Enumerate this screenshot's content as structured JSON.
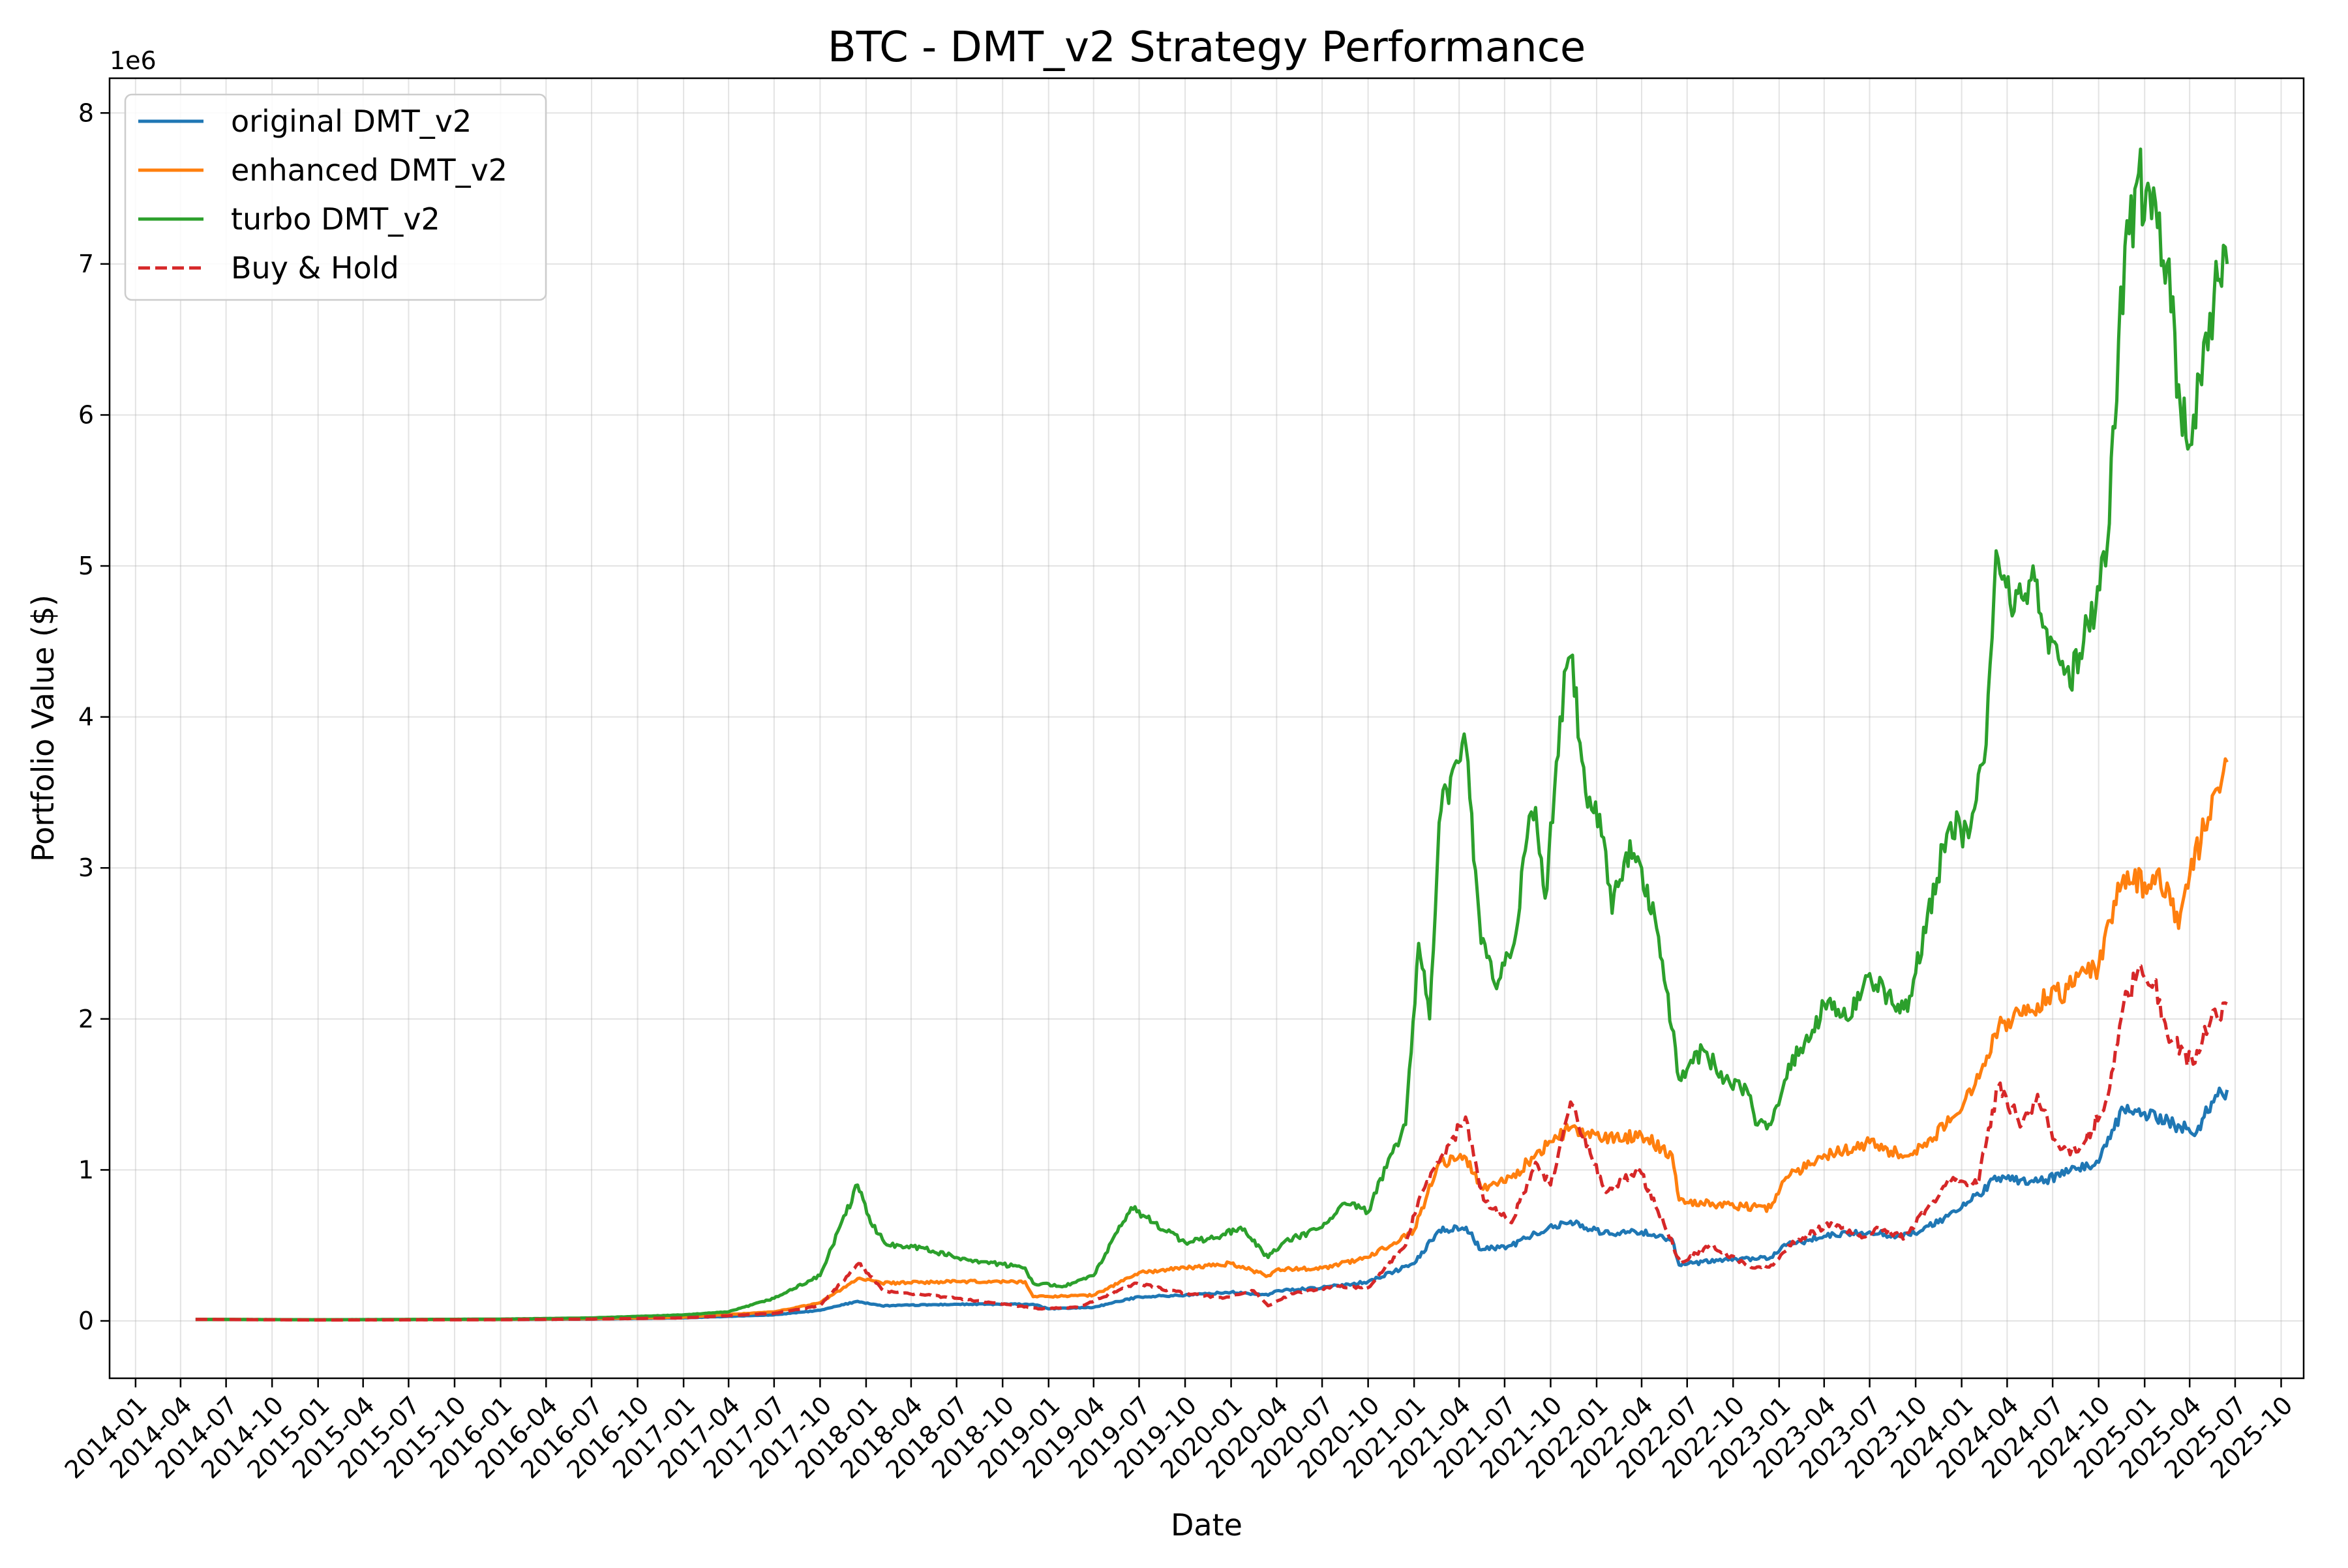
{
  "chart_data": {
    "type": "line",
    "title": "BTC - DMT_v2 Strategy Performance",
    "xlabel": "Date",
    "ylabel": "Portfolio Value ($)",
    "y_offset_label": "1e6",
    "y_scale_factor": 1000000,
    "xlim": [
      "2013-11-10",
      "2025-11-15"
    ],
    "ylim": [
      -380000,
      8230000
    ],
    "x_ticks": [
      "2014-01",
      "2014-04",
      "2014-07",
      "2014-10",
      "2015-01",
      "2015-04",
      "2015-07",
      "2015-10",
      "2016-01",
      "2016-04",
      "2016-07",
      "2016-10",
      "2017-01",
      "2017-04",
      "2017-07",
      "2017-10",
      "2018-01",
      "2018-04",
      "2018-07",
      "2018-10",
      "2019-01",
      "2019-04",
      "2019-07",
      "2019-10",
      "2020-01",
      "2020-04",
      "2020-07",
      "2020-10",
      "2021-01",
      "2021-04",
      "2021-07",
      "2021-10",
      "2022-01",
      "2022-04",
      "2022-07",
      "2022-10",
      "2023-01",
      "2023-04",
      "2023-07",
      "2023-10",
      "2024-01",
      "2024-04",
      "2024-07",
      "2024-10",
      "2025-01",
      "2025-04",
      "2025-07",
      "2025-10"
    ],
    "y_ticks": [
      0,
      1000000,
      2000000,
      3000000,
      4000000,
      5000000,
      6000000,
      7000000,
      8000000
    ],
    "y_tick_labels": [
      "0",
      "1",
      "2",
      "3",
      "4",
      "5",
      "6",
      "7",
      "8"
    ],
    "grid": true,
    "legend_position": "upper-left",
    "series": [
      {
        "name": "original DMT_v2",
        "color": "#1f77b4",
        "dash": "solid",
        "points": [
          [
            "2014-05-01",
            10000
          ],
          [
            "2015-01-01",
            8000
          ],
          [
            "2016-01-01",
            9000
          ],
          [
            "2016-07-01",
            12000
          ],
          [
            "2017-01-01",
            20000
          ],
          [
            "2017-07-01",
            40000
          ],
          [
            "2017-10-01",
            70000
          ],
          [
            "2017-12-15",
            130000
          ],
          [
            "2018-02-01",
            100000
          ],
          [
            "2018-07-01",
            110000
          ],
          [
            "2018-12-01",
            110000
          ],
          [
            "2019-01-01",
            80000
          ],
          [
            "2019-04-01",
            90000
          ],
          [
            "2019-07-01",
            160000
          ],
          [
            "2019-10-01",
            170000
          ],
          [
            "2020-01-01",
            190000
          ],
          [
            "2020-03-15",
            170000
          ],
          [
            "2020-04-01",
            200000
          ],
          [
            "2020-07-01",
            220000
          ],
          [
            "2020-10-01",
            260000
          ],
          [
            "2021-01-01",
            380000
          ],
          [
            "2021-02-20",
            600000
          ],
          [
            "2021-04-15",
            620000
          ],
          [
            "2021-05-15",
            470000
          ],
          [
            "2021-07-15",
            500000
          ],
          [
            "2021-09-01",
            580000
          ],
          [
            "2021-11-10",
            660000
          ],
          [
            "2022-01-15",
            580000
          ],
          [
            "2022-04-01",
            590000
          ],
          [
            "2022-06-01",
            540000
          ],
          [
            "2022-06-15",
            370000
          ],
          [
            "2022-09-01",
            400000
          ],
          [
            "2022-12-15",
            420000
          ],
          [
            "2023-01-15",
            500000
          ],
          [
            "2023-04-01",
            560000
          ],
          [
            "2023-07-01",
            590000
          ],
          [
            "2023-09-01",
            560000
          ],
          [
            "2023-10-15",
            600000
          ],
          [
            "2024-01-01",
            750000
          ],
          [
            "2024-03-15",
            950000
          ],
          [
            "2024-06-01",
            920000
          ],
          [
            "2024-08-01",
            980000
          ],
          [
            "2024-10-01",
            1050000
          ],
          [
            "2024-11-20",
            1400000
          ],
          [
            "2025-01-01",
            1380000
          ],
          [
            "2025-03-01",
            1300000
          ],
          [
            "2025-04-15",
            1250000
          ],
          [
            "2025-05-15",
            1450000
          ],
          [
            "2025-06-15",
            1530000
          ]
        ]
      },
      {
        "name": "enhanced DMT_v2",
        "color": "#ff7f0e",
        "dash": "solid",
        "points": [
          [
            "2014-05-01",
            10000
          ],
          [
            "2015-01-01",
            8000
          ],
          [
            "2016-01-01",
            10000
          ],
          [
            "2016-07-01",
            15000
          ],
          [
            "2017-01-01",
            25000
          ],
          [
            "2017-07-01",
            60000
          ],
          [
            "2017-10-01",
            120000
          ],
          [
            "2017-12-15",
            280000
          ],
          [
            "2018-02-01",
            250000
          ],
          [
            "2018-07-01",
            260000
          ],
          [
            "2018-11-15",
            260000
          ],
          [
            "2018-12-01",
            160000
          ],
          [
            "2019-04-01",
            170000
          ],
          [
            "2019-07-01",
            320000
          ],
          [
            "2019-10-01",
            350000
          ],
          [
            "2020-01-01",
            380000
          ],
          [
            "2020-03-15",
            300000
          ],
          [
            "2020-04-01",
            340000
          ],
          [
            "2020-07-01",
            350000
          ],
          [
            "2020-10-01",
            420000
          ],
          [
            "2021-01-01",
            600000
          ],
          [
            "2021-02-20",
            1050000
          ],
          [
            "2021-04-15",
            1080000
          ],
          [
            "2021-05-15",
            880000
          ],
          [
            "2021-07-15",
            950000
          ],
          [
            "2021-09-01",
            1100000
          ],
          [
            "2021-11-10",
            1280000
          ],
          [
            "2022-01-15",
            1200000
          ],
          [
            "2022-04-01",
            1230000
          ],
          [
            "2022-06-01",
            1100000
          ],
          [
            "2022-06-15",
            800000
          ],
          [
            "2022-09-01",
            770000
          ],
          [
            "2022-12-15",
            750000
          ],
          [
            "2023-01-15",
            950000
          ],
          [
            "2023-04-01",
            1100000
          ],
          [
            "2023-07-01",
            1180000
          ],
          [
            "2023-09-01",
            1100000
          ],
          [
            "2023-10-15",
            1150000
          ],
          [
            "2024-01-01",
            1400000
          ],
          [
            "2024-03-15",
            1950000
          ],
          [
            "2024-06-01",
            2100000
          ],
          [
            "2024-08-01",
            2200000
          ],
          [
            "2024-10-01",
            2350000
          ],
          [
            "2024-11-20",
            2950000
          ],
          [
            "2025-01-01",
            2900000
          ],
          [
            "2025-02-15",
            2900000
          ],
          [
            "2025-03-10",
            2600000
          ],
          [
            "2025-04-01",
            2950000
          ],
          [
            "2025-05-01",
            3250000
          ],
          [
            "2025-05-20",
            3500000
          ],
          [
            "2025-06-15",
            3700000
          ]
        ]
      },
      {
        "name": "turbo DMT_v2",
        "color": "#2ca02c",
        "dash": "solid",
        "points": [
          [
            "2014-05-01",
            10000
          ],
          [
            "2015-01-01",
            8000
          ],
          [
            "2016-01-01",
            12000
          ],
          [
            "2016-07-01",
            20000
          ],
          [
            "2017-01-01",
            40000
          ],
          [
            "2017-04-01",
            60000
          ],
          [
            "2017-07-01",
            150000
          ],
          [
            "2017-10-01",
            300000
          ],
          [
            "2017-12-15",
            900000
          ],
          [
            "2018-01-10",
            650000
          ],
          [
            "2018-02-15",
            500000
          ],
          [
            "2018-04-01",
            500000
          ],
          [
            "2018-07-01",
            420000
          ],
          [
            "2018-11-15",
            350000
          ],
          [
            "2018-12-01",
            250000
          ],
          [
            "2019-02-01",
            230000
          ],
          [
            "2019-04-01",
            300000
          ],
          [
            "2019-06-15",
            750000
          ],
          [
            "2019-08-01",
            650000
          ],
          [
            "2019-10-01",
            520000
          ],
          [
            "2019-12-01",
            550000
          ],
          [
            "2020-01-20",
            620000
          ],
          [
            "2020-03-15",
            420000
          ],
          [
            "2020-04-15",
            520000
          ],
          [
            "2020-07-01",
            620000
          ],
          [
            "2020-08-15",
            780000
          ],
          [
            "2020-10-01",
            720000
          ],
          [
            "2020-11-15",
            1100000
          ],
          [
            "2020-12-15",
            1300000
          ],
          [
            "2021-01-10",
            2500000
          ],
          [
            "2021-02-01",
            2000000
          ],
          [
            "2021-02-20",
            3300000
          ],
          [
            "2021-03-15",
            3600000
          ],
          [
            "2021-04-15",
            3800000
          ],
          [
            "2021-05-15",
            2500000
          ],
          [
            "2021-06-15",
            2200000
          ],
          [
            "2021-07-20",
            2500000
          ],
          [
            "2021-08-15",
            3200000
          ],
          [
            "2021-09-01",
            3400000
          ],
          [
            "2021-09-20",
            2800000
          ],
          [
            "2021-10-20",
            4000000
          ],
          [
            "2021-11-10",
            4400000
          ],
          [
            "2021-12-10",
            3500000
          ],
          [
            "2022-01-15",
            3200000
          ],
          [
            "2022-02-01",
            2700000
          ],
          [
            "2022-03-01",
            3100000
          ],
          [
            "2022-04-01",
            3000000
          ],
          [
            "2022-05-01",
            2600000
          ],
          [
            "2022-05-20",
            2200000
          ],
          [
            "2022-06-15",
            1600000
          ],
          [
            "2022-08-01",
            1800000
          ],
          [
            "2022-09-15",
            1600000
          ],
          [
            "2022-11-01",
            1500000
          ],
          [
            "2022-11-15",
            1300000
          ],
          [
            "2022-12-15",
            1300000
          ],
          [
            "2023-01-20",
            1700000
          ],
          [
            "2023-03-01",
            1850000
          ],
          [
            "2023-04-01",
            2100000
          ],
          [
            "2023-05-15",
            2000000
          ],
          [
            "2023-07-01",
            2300000
          ],
          [
            "2023-08-15",
            2100000
          ],
          [
            "2023-09-15",
            2050000
          ],
          [
            "2023-10-25",
            2700000
          ],
          [
            "2023-12-10",
            3300000
          ],
          [
            "2024-01-15",
            3200000
          ],
          [
            "2024-02-15",
            3700000
          ],
          [
            "2024-03-10",
            5100000
          ],
          [
            "2024-04-15",
            4700000
          ],
          [
            "2024-05-15",
            4900000
          ],
          [
            "2024-07-01",
            4500000
          ],
          [
            "2024-08-05",
            4200000
          ],
          [
            "2024-09-01",
            4500000
          ],
          [
            "2024-10-15",
            5000000
          ],
          [
            "2024-11-10",
            6500000
          ],
          [
            "2024-12-01",
            7200000
          ],
          [
            "2024-12-20",
            7600000
          ],
          [
            "2025-01-15",
            7300000
          ],
          [
            "2025-02-15",
            7000000
          ],
          [
            "2025-03-10",
            6200000
          ],
          [
            "2025-04-01",
            5800000
          ],
          [
            "2025-04-25",
            6200000
          ],
          [
            "2025-05-20",
            6800000
          ],
          [
            "2025-06-15",
            7000000
          ]
        ]
      },
      {
        "name": "Buy & Hold",
        "color": "#d62728",
        "dash": "dashed",
        "points": [
          [
            "2014-05-01",
            10000
          ],
          [
            "2015-01-01",
            6000
          ],
          [
            "2016-01-01",
            8000
          ],
          [
            "2016-07-01",
            12000
          ],
          [
            "2017-01-01",
            20000
          ],
          [
            "2017-07-01",
            50000
          ],
          [
            "2017-10-01",
            100000
          ],
          [
            "2017-12-17",
            380000
          ],
          [
            "2018-02-05",
            200000
          ],
          [
            "2018-07-01",
            150000
          ],
          [
            "2018-12-15",
            80000
          ],
          [
            "2019-03-01",
            90000
          ],
          [
            "2019-06-26",
            250000
          ],
          [
            "2019-09-01",
            200000
          ],
          [
            "2019-12-15",
            150000
          ],
          [
            "2020-02-15",
            200000
          ],
          [
            "2020-03-15",
            100000
          ],
          [
            "2020-05-01",
            180000
          ],
          [
            "2020-08-01",
            230000
          ],
          [
            "2020-10-01",
            220000
          ],
          [
            "2020-12-15",
            500000
          ],
          [
            "2021-01-10",
            800000
          ],
          [
            "2021-02-20",
            1050000
          ],
          [
            "2021-04-14",
            1350000
          ],
          [
            "2021-05-20",
            800000
          ],
          [
            "2021-07-15",
            650000
          ],
          [
            "2021-09-01",
            1050000
          ],
          [
            "2021-10-01",
            900000
          ],
          [
            "2021-11-10",
            1450000
          ],
          [
            "2022-01-20",
            850000
          ],
          [
            "2022-03-28",
            1000000
          ],
          [
            "2022-05-15",
            650000
          ],
          [
            "2022-06-18",
            380000
          ],
          [
            "2022-08-15",
            500000
          ],
          [
            "2022-11-10",
            350000
          ],
          [
            "2022-12-20",
            370000
          ],
          [
            "2023-01-20",
            500000
          ],
          [
            "2023-04-15",
            650000
          ],
          [
            "2023-06-15",
            550000
          ],
          [
            "2023-07-15",
            620000
          ],
          [
            "2023-09-10",
            550000
          ],
          [
            "2023-10-25",
            750000
          ],
          [
            "2023-12-15",
            950000
          ],
          [
            "2024-02-01",
            900000
          ],
          [
            "2024-03-14",
            1550000
          ],
          [
            "2024-05-01",
            1300000
          ],
          [
            "2024-06-01",
            1500000
          ],
          [
            "2024-07-05",
            1200000
          ],
          [
            "2024-08-05",
            1100000
          ],
          [
            "2024-09-06",
            1200000
          ],
          [
            "2024-10-15",
            1450000
          ],
          [
            "2024-11-20",
            2100000
          ],
          [
            "2024-12-17",
            2300000
          ],
          [
            "2025-01-20",
            2250000
          ],
          [
            "2025-02-15",
            1900000
          ],
          [
            "2025-04-08",
            1700000
          ],
          [
            "2025-05-01",
            1950000
          ],
          [
            "2025-06-15",
            2100000
          ]
        ]
      }
    ]
  }
}
